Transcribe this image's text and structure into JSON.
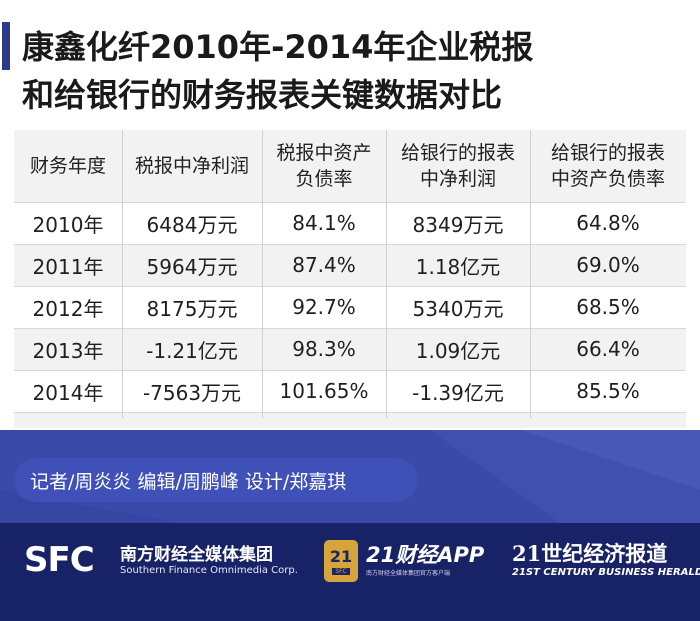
{
  "title": {
    "line1": "康鑫化纤2010年-2014年企业税报",
    "line2": "和给银行的财务报表关键数据对比"
  },
  "table": {
    "headers": [
      "财务年度",
      "税报中净利润",
      "税报中资产\n负债率",
      "给银行的报表\n中净利润",
      "给银行的报表\n中资产负债率"
    ],
    "rows": [
      [
        "2010年",
        "6484万元",
        "84.1%",
        "8349万元",
        "64.8%"
      ],
      [
        "2011年",
        "5964万元",
        "87.4%",
        "1.18亿元",
        "69.0%"
      ],
      [
        "2012年",
        "8175万元",
        "92.7%",
        "5340万元",
        "68.5%"
      ],
      [
        "2013年",
        "-1.21亿元",
        "98.3%",
        "1.09亿元",
        "66.4%"
      ],
      [
        "2014年",
        "-7563万元",
        "101.65%",
        "-1.39亿元",
        "85.5%"
      ]
    ]
  },
  "credits": "记者/周炎炎  编辑/周鹏峰  设计/郑嘉琪",
  "footer": {
    "sfc_logo": "SFC",
    "sfc_name_cn": "南方财经全媒体集团",
    "sfc_name_en": "Southern Finance Omnimedia Corp.",
    "app_badge_num": "21",
    "app_badge_small": "SFC",
    "app_title": "21财经APP",
    "app_sub": "南方财经全媒体集团官方客户端",
    "herald_cn": "21世纪经济报道",
    "herald_en": "21ST CENTURY BUSINESS HERALD"
  },
  "colors": {
    "title_bar": "#2b3a8a",
    "band": "#3a4aa8",
    "bottom": "#182266",
    "badge": "#d7a43a"
  }
}
